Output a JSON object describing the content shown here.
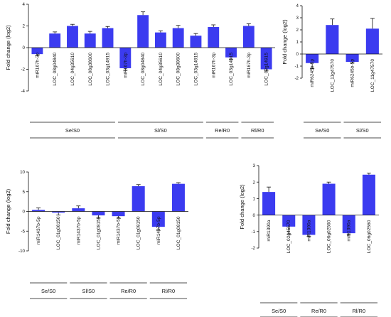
{
  "chart_data": [
    {
      "type": "bar",
      "ylabel": "Fold change (log2)",
      "ylim": [
        -4,
        4
      ],
      "yticks": [
        -4,
        -2,
        0,
        2,
        4
      ],
      "bar_color": "#3b3bf0",
      "categories": [
        "miR167h-3p",
        "LOC_08g04840",
        "LOC_04g35610",
        "LOC_08g38600",
        "LOC_03g14915",
        "miR167h-3p",
        "LOC_08g04840",
        "LOC_04g35610",
        "LOC_08g38600",
        "LOC_03g14915",
        "miR167h-3p",
        "LOC_03g14915",
        "miR167h-3p",
        "LOC_03g14915"
      ],
      "values": [
        -0.6,
        1.3,
        2.0,
        1.3,
        1.8,
        -1.9,
        3.0,
        1.4,
        1.8,
        1.1,
        1.9,
        -0.9,
        2.0,
        -2.0
      ],
      "errors": [
        0.15,
        0.15,
        0.15,
        0.2,
        0.15,
        0.2,
        0.3,
        0.15,
        0.25,
        0.2,
        0.2,
        0.2,
        0.2,
        0.15
      ],
      "groups": [
        {
          "label": "Se/S0",
          "start": 0,
          "end": 4
        },
        {
          "label": "Sl/S0",
          "start": 5,
          "end": 9
        },
        {
          "label": "Re/R0",
          "start": 10,
          "end": 11
        },
        {
          "label": "Rl/R0",
          "start": 12,
          "end": 13
        }
      ]
    },
    {
      "type": "bar",
      "ylabel": "Fold change (log2)",
      "ylim": [
        -2,
        4
      ],
      "yticks": [
        -2,
        -1,
        0,
        1,
        2,
        3,
        4
      ],
      "bar_color": "#3b3bf0",
      "categories": [
        "miR6245b-5p",
        "LOC_11g47570",
        "miR6245b-5p",
        "LOC_11g47570"
      ],
      "values": [
        -0.75,
        2.4,
        -0.65,
        2.1
      ],
      "errors": [
        0.45,
        0.5,
        0.1,
        0.85
      ],
      "groups": [
        {
          "label": "Se/S0",
          "start": 0,
          "end": 1
        },
        {
          "label": "Sl/S0",
          "start": 2,
          "end": 3
        }
      ]
    },
    {
      "type": "bar",
      "ylabel": "Fold change (log2)",
      "ylim": [
        -10,
        10
      ],
      "yticks": [
        -10,
        -5,
        0,
        5,
        10
      ],
      "bar_color": "#3b3bf0",
      "categories": [
        "miR1437b-5p",
        "LOC_01g08150",
        "miR1437b-5p",
        "LOC_01g08150",
        "miR1437b-5p",
        "LOC_01g08150",
        "miR1437b-5p",
        "LOC_01g08150"
      ],
      "values": [
        0.4,
        -0.3,
        0.8,
        -1.0,
        -1.2,
        6.4,
        -3.9,
        7.0
      ],
      "errors": [
        0.5,
        0.6,
        0.6,
        0.7,
        0.5,
        0.4,
        0.9,
        0.3
      ],
      "groups": [
        {
          "label": "Se/S0",
          "start": 0,
          "end": 1
        },
        {
          "label": "Sl/S0",
          "start": 2,
          "end": 3
        },
        {
          "label": "Re/R0",
          "start": 4,
          "end": 5
        },
        {
          "label": "Rl/R0",
          "start": 6,
          "end": 7
        }
      ]
    },
    {
      "type": "bar",
      "ylabel": "Fold change (log2)",
      "ylim": [
        -2,
        3
      ],
      "yticks": [
        -2,
        -1,
        0,
        1,
        2,
        3
      ],
      "bar_color": "#3b3bf0",
      "categories": [
        "miR1390a",
        "LOC_02g45570",
        "miR1390a",
        "LOC_06g02560",
        "miR1390a",
        "LOC_06g02560"
      ],
      "values": [
        1.4,
        -0.7,
        -1.2,
        1.9,
        -1.1,
        2.45
      ],
      "errors": [
        0.3,
        0.45,
        0.1,
        0.1,
        0.1,
        0.1
      ],
      "groups": [
        {
          "label": "Se/S0",
          "start": 0,
          "end": 1
        },
        {
          "label": "Re/R0",
          "start": 2,
          "end": 3
        },
        {
          "label": "Rl/R0",
          "start": 4,
          "end": 5
        }
      ]
    }
  ]
}
